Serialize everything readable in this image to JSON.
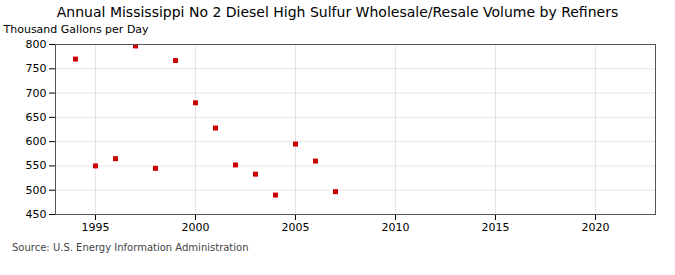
{
  "chart_data": {
    "type": "scatter",
    "title": "Annual Mississippi No 2 Diesel High Sulfur Wholesale/Resale Volume by Refiners",
    "ylabel": "Thousand Gallons per Day",
    "source": "Source: U.S. Energy Information Administration",
    "x": [
      1994,
      1995,
      1996,
      1997,
      1998,
      1999,
      2000,
      2001,
      2002,
      2003,
      2004,
      2005,
      2006,
      2007
    ],
    "values": [
      770,
      550,
      565,
      797,
      545,
      767,
      680,
      628,
      552,
      533,
      490,
      595,
      560,
      497
    ],
    "color": "#cc0000",
    "marker": "square",
    "xlim": [
      1993,
      2023
    ],
    "xticks": [
      1995,
      2000,
      2005,
      2010,
      2015,
      2020
    ],
    "ylim": [
      450,
      800
    ],
    "yticks": [
      450,
      500,
      550,
      600,
      650,
      700,
      750,
      800
    ],
    "grid": true
  }
}
